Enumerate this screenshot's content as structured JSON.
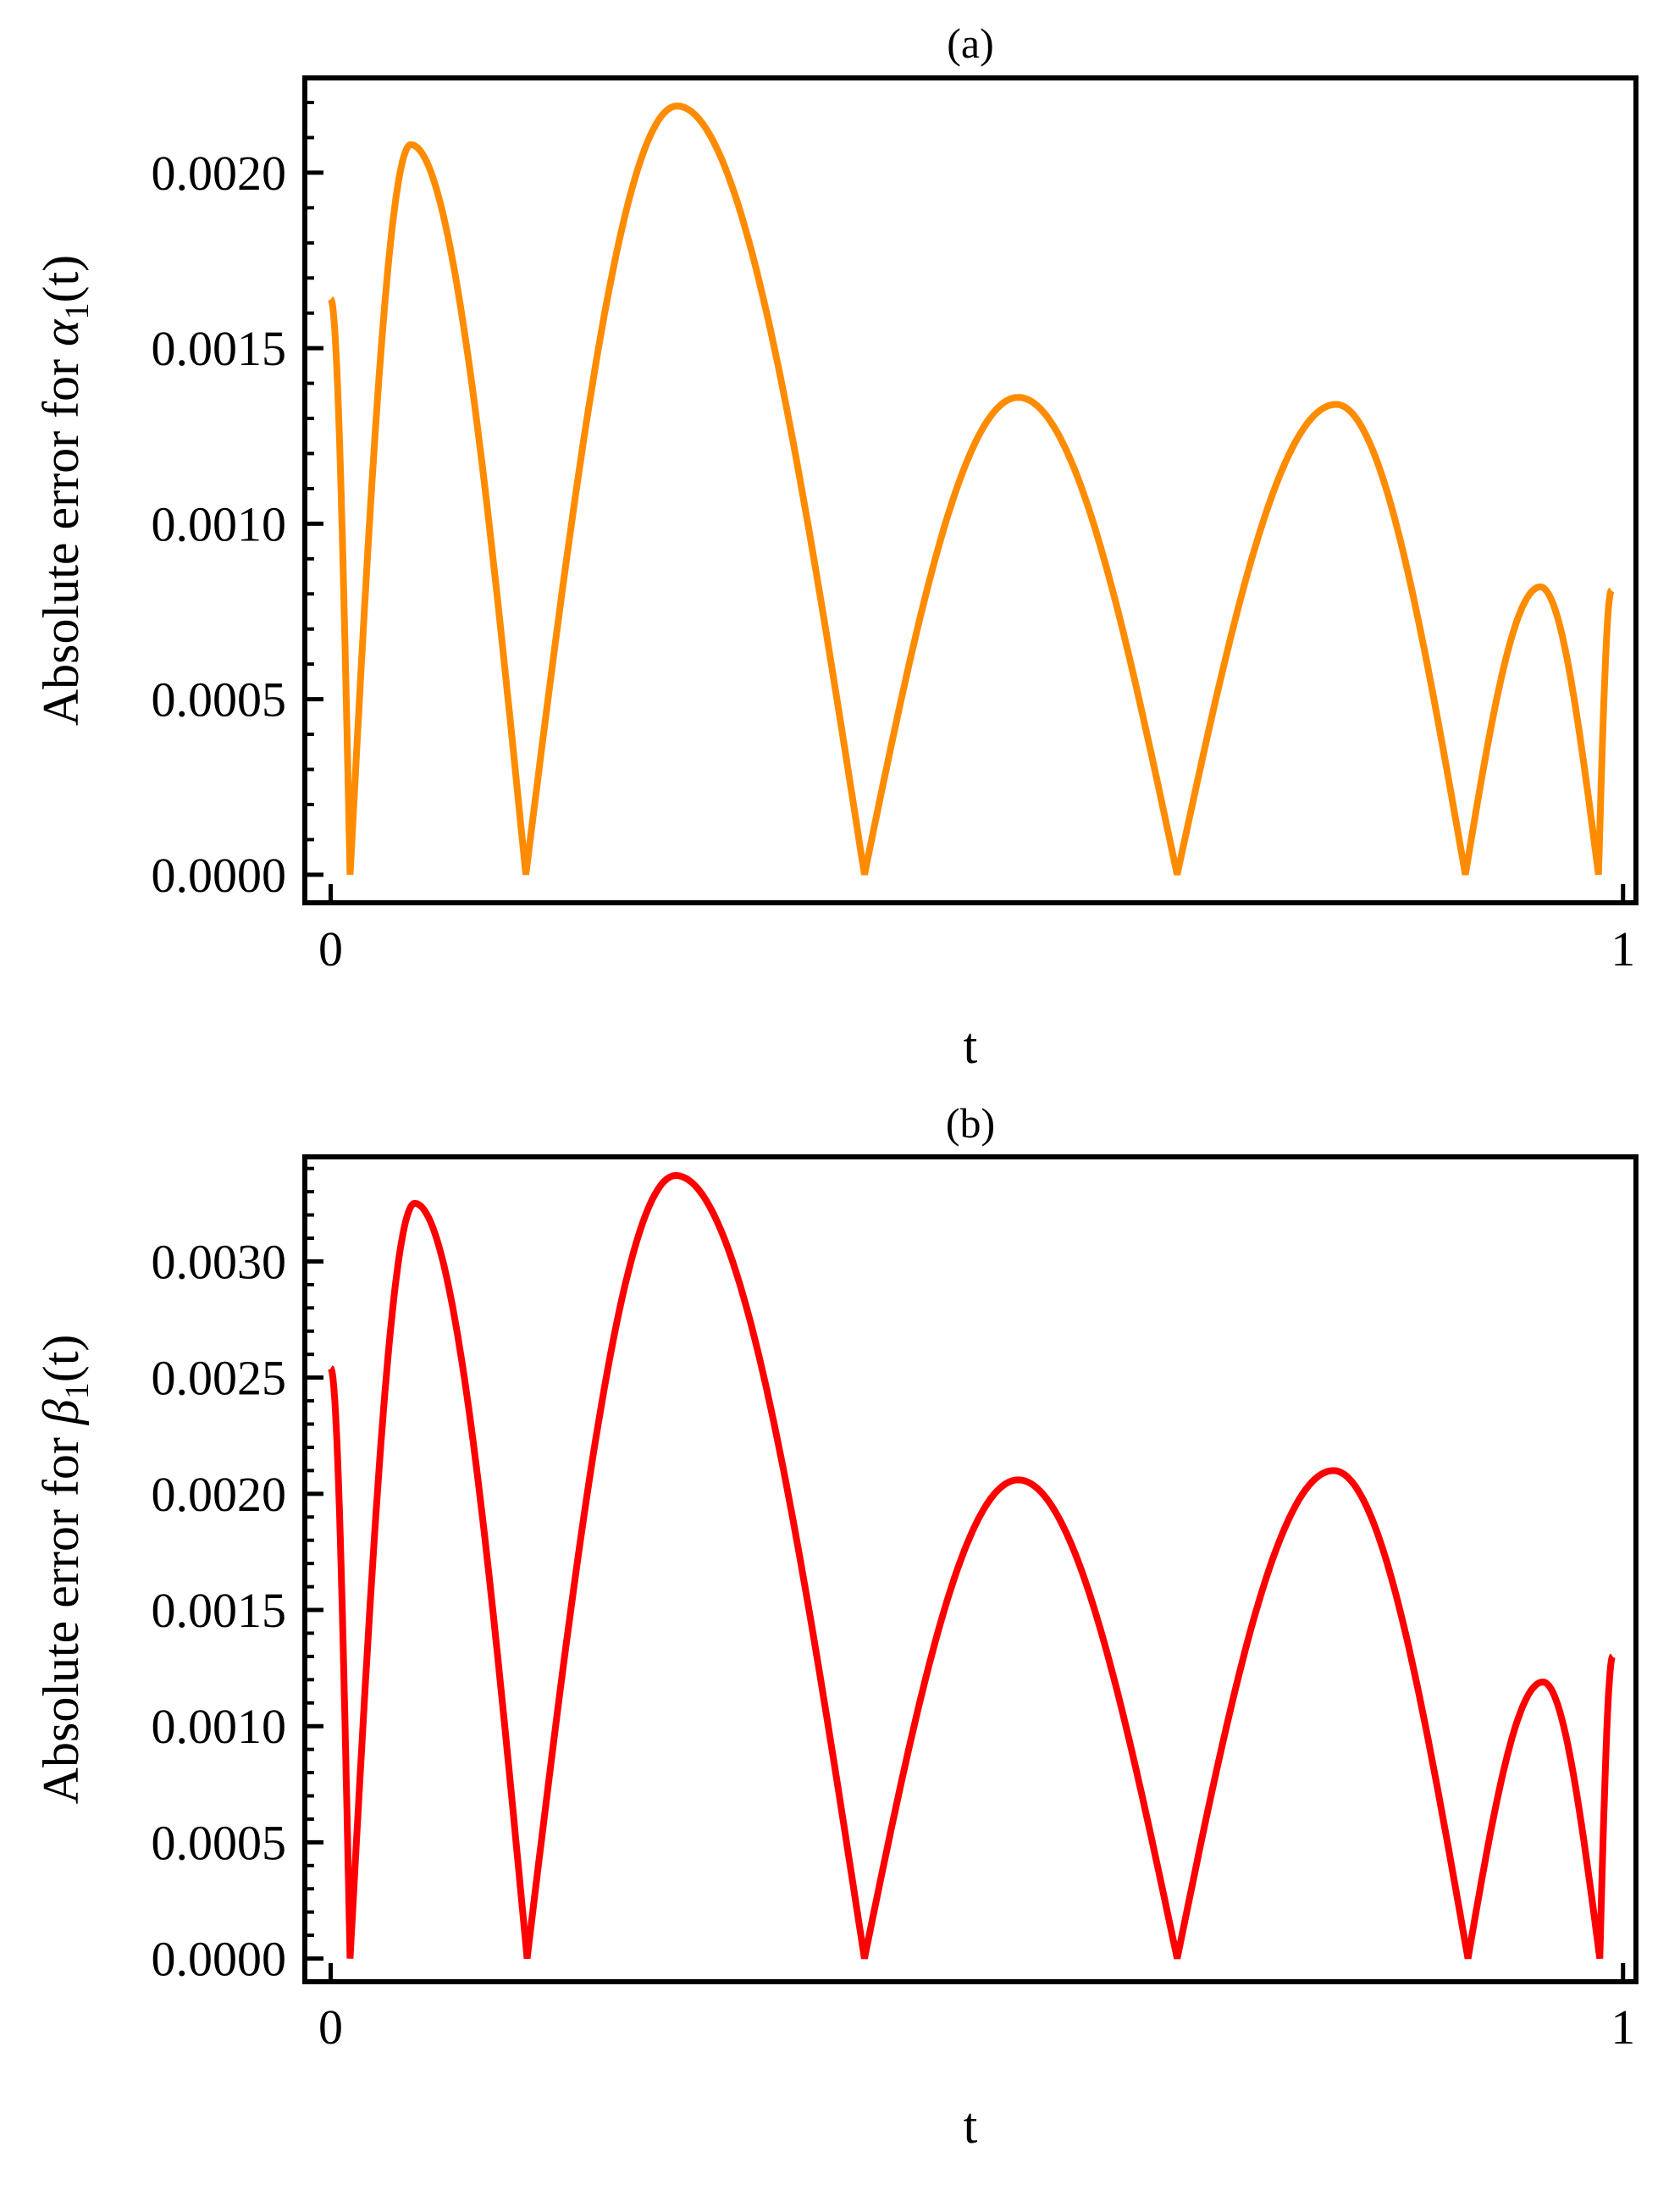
{
  "chart_data": [
    {
      "type": "line",
      "title": "(a)",
      "xlabel": "t",
      "ylabel_prefix": "Absolute error for ",
      "ylabel_symbol": "α",
      "ylabel_subscript": "1",
      "ylabel_suffix": "(t)",
      "xlim": [
        -0.02,
        1.01
      ],
      "ylim": [
        -8e-05,
        0.00227
      ],
      "x_ticks": [
        "0",
        "1"
      ],
      "x_tick_values": [
        0,
        1
      ],
      "y_ticks": [
        "0.0000",
        "0.0005",
        "0.0010",
        "0.0015",
        "0.0020"
      ],
      "y_tick_values": [
        0,
        0.0005,
        0.001,
        0.0015,
        0.002
      ],
      "grid": false,
      "color": "#ff8c00",
      "series": [
        {
          "x": [
            0,
            0.015,
            0.062,
            0.151,
            0.268,
            0.413,
            0.532,
            0.655,
            0.778,
            0.878,
            0.936,
            0.981,
            0.991
          ],
          "y": [
            0.00164,
            0,
            0.00208,
            0,
            0.00219,
            0,
            0.00136,
            0,
            0.00134,
            0,
            0.00082,
            0,
            0.00081
          ]
        }
      ]
    },
    {
      "type": "line",
      "title": "(b)",
      "xlabel": "t",
      "ylabel_prefix": "Absolute error for ",
      "ylabel_symbol": "β",
      "ylabel_subscript": "1",
      "ylabel_suffix": "(t)",
      "xlim": [
        -0.02,
        1.01
      ],
      "ylim": [
        -0.0001,
        0.00345
      ],
      "x_ticks": [
        "0",
        "1"
      ],
      "x_tick_values": [
        0,
        1
      ],
      "y_ticks": [
        "0.0000",
        "0.0005",
        "0.0010",
        "0.0015",
        "0.0020",
        "0.0025",
        "0.0030"
      ],
      "y_tick_values": [
        0,
        0.0005,
        0.001,
        0.0015,
        0.002,
        0.0025,
        0.003
      ],
      "grid": false,
      "color": "#ff0000",
      "series": [
        {
          "x": [
            0,
            0.015,
            0.065,
            0.152,
            0.267,
            0.413,
            0.532,
            0.655,
            0.776,
            0.88,
            0.938,
            0.982,
            0.992
          ],
          "y": [
            0.00254,
            0,
            0.00325,
            0,
            0.00337,
            0,
            0.00206,
            0,
            0.0021,
            0,
            0.00119,
            0,
            0.0013
          ]
        }
      ]
    }
  ]
}
